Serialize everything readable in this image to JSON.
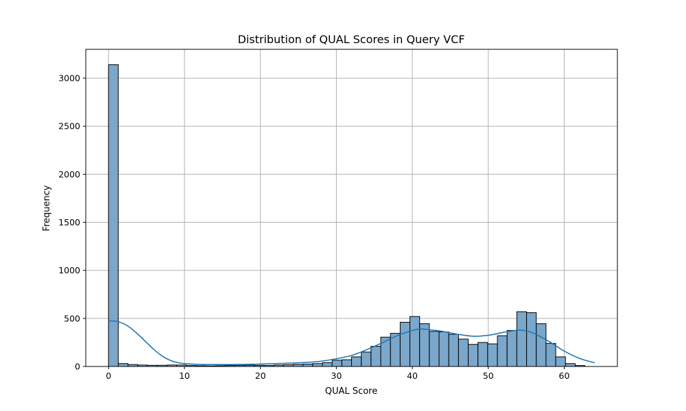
{
  "chart_data": {
    "type": "bar",
    "title": "Distribution of QUAL Scores in Query VCF",
    "xlabel": "QUAL Score",
    "ylabel": "Frequency",
    "xlim": [
      -3,
      67
    ],
    "ylim": [
      0,
      3300
    ],
    "x_ticks": [
      0,
      10,
      20,
      30,
      40,
      50,
      60
    ],
    "y_ticks": [
      0,
      500,
      1000,
      1500,
      2000,
      2500,
      3000
    ],
    "grid": true,
    "bin_edges": [
      0,
      1.28,
      2.56,
      3.84,
      5.12,
      6.4,
      7.68,
      8.96,
      10.24,
      11.52,
      12.8,
      14.08,
      15.36,
      16.64,
      17.92,
      19.2,
      20.48,
      21.76,
      23.04,
      24.32,
      25.6,
      26.88,
      28.16,
      29.44,
      30.72,
      32,
      33.28,
      34.56,
      35.84,
      37.12,
      38.4,
      39.68,
      40.96,
      42.24,
      43.52,
      44.8,
      46.08,
      47.36,
      48.64,
      49.92,
      51.2,
      52.48,
      53.76,
      55.04,
      56.32,
      57.6,
      58.88,
      60.16,
      61.44,
      62.72,
      64
    ],
    "counts": [
      3140,
      30,
      20,
      15,
      12,
      12,
      15,
      15,
      10,
      8,
      6,
      8,
      10,
      12,
      14,
      12,
      10,
      15,
      18,
      22,
      25,
      30,
      40,
      65,
      70,
      100,
      150,
      210,
      305,
      345,
      460,
      520,
      445,
      365,
      360,
      335,
      285,
      230,
      250,
      235,
      320,
      375,
      570,
      560,
      445,
      240,
      100,
      30,
      10,
      0
    ],
    "kde": {
      "x": [
        0,
        1,
        2,
        3,
        4,
        5,
        6,
        7,
        8,
        9,
        10,
        12,
        14,
        16,
        18,
        20,
        22,
        24,
        26,
        28,
        30,
        32,
        34,
        36,
        38,
        40,
        41,
        42,
        44,
        46,
        48,
        50,
        52,
        54,
        55,
        56,
        58,
        60,
        62,
        64
      ],
      "y": [
        475,
        470,
        445,
        395,
        325,
        250,
        175,
        112,
        68,
        42,
        30,
        22,
        20,
        20,
        22,
        25,
        30,
        35,
        42,
        55,
        80,
        115,
        175,
        245,
        320,
        375,
        390,
        385,
        365,
        335,
        315,
        325,
        355,
        378,
        370,
        345,
        260,
        160,
        85,
        38
      ]
    },
    "colors": {
      "bar_fill": "#7ba7cb",
      "bar_edge": "#000000",
      "kde_line": "#1f77b4",
      "grid": "#b0b0b0"
    }
  }
}
